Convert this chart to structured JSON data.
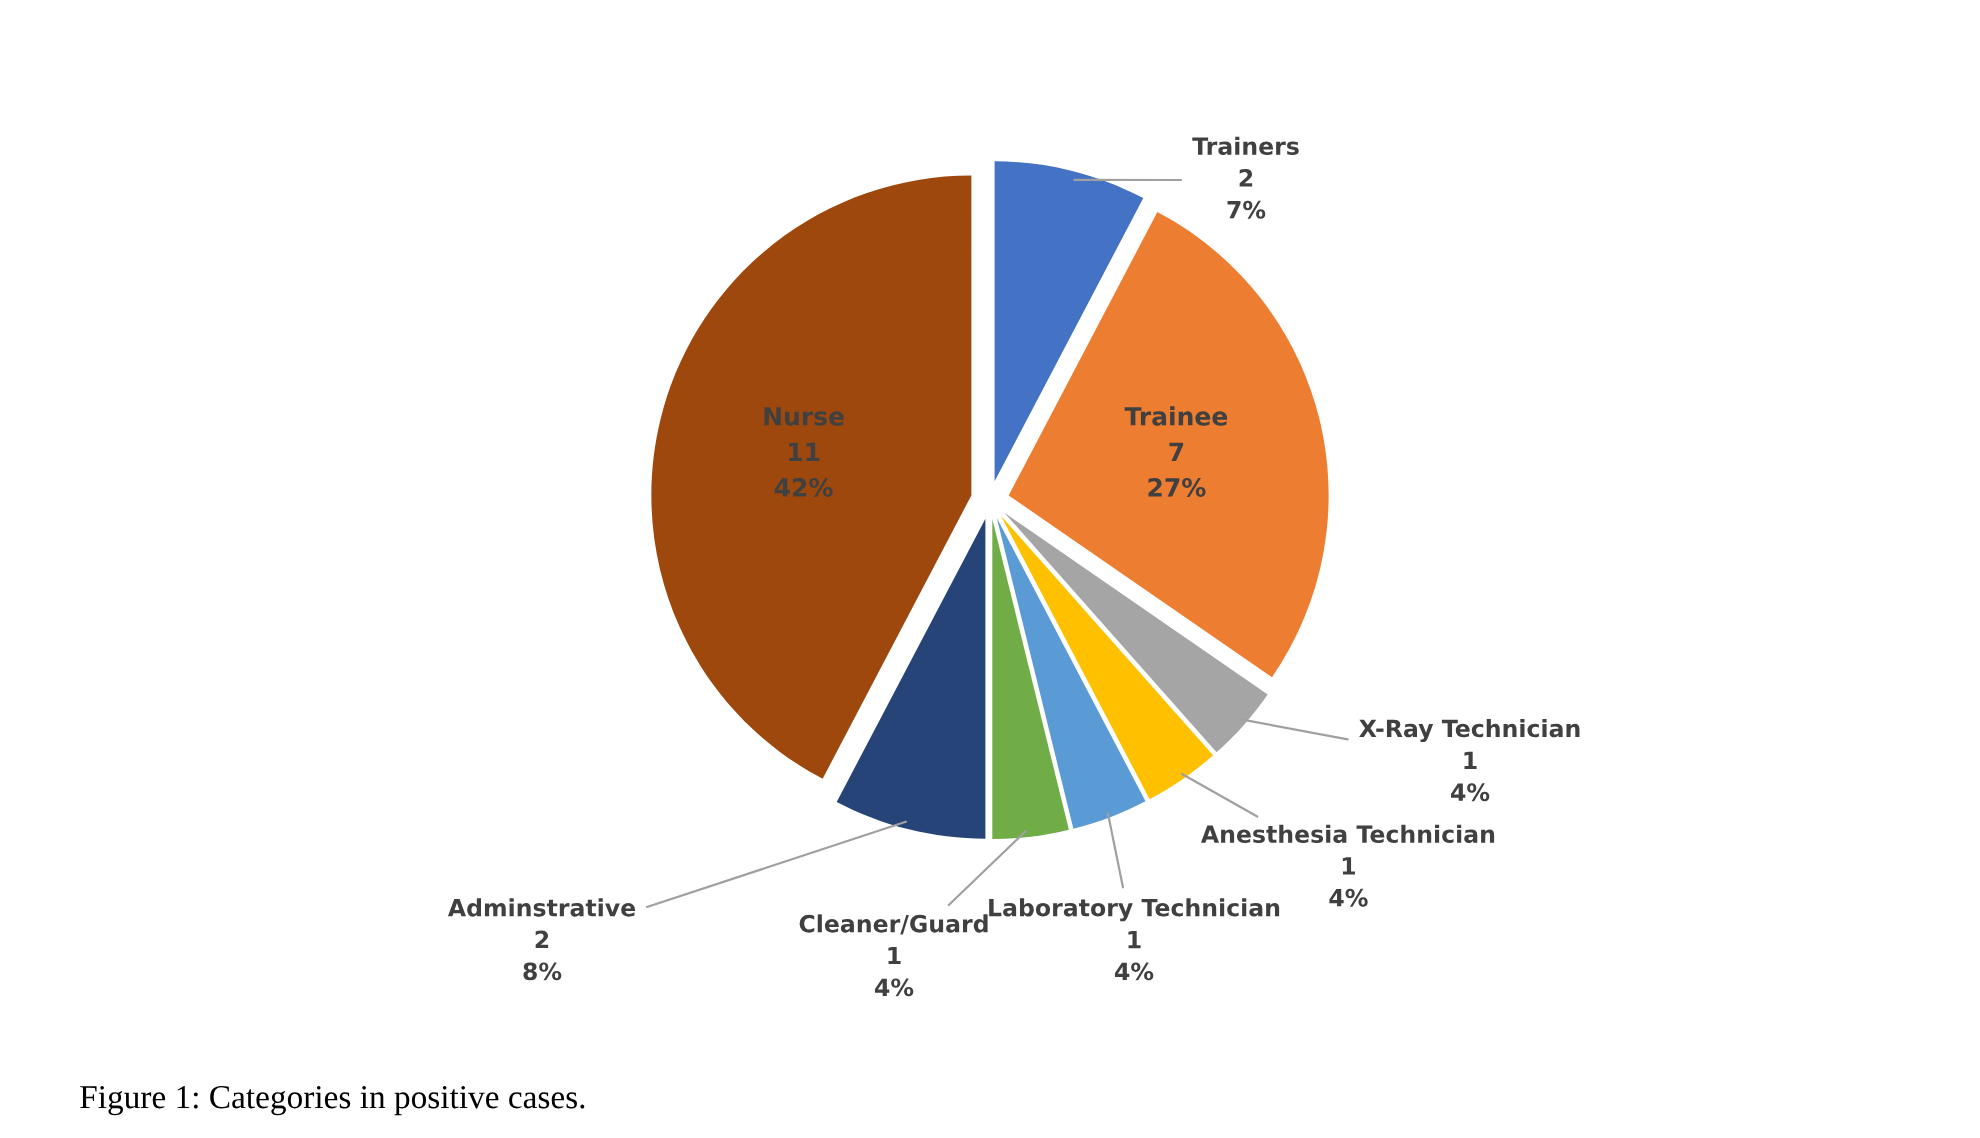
{
  "chart_data": {
    "type": "pie",
    "categories": [
      "Trainers",
      "Trainee",
      "X-Ray Technician",
      "Anesthesia Technician",
      "Laboratory Technician",
      "Cleaner/Guard",
      "Adminstrative",
      "Nurse"
    ],
    "values": [
      2,
      7,
      1,
      1,
      1,
      1,
      2,
      11
    ],
    "value_labels": [
      "2\n7%",
      "7\n27%",
      "1\n4%",
      "1\n4%",
      "1\n4%",
      "1\n4%",
      "2\n8%",
      "11\n42%"
    ],
    "colors": [
      "#4472c4",
      "#ed7d31",
      "#a5a5a5",
      "#ffc000",
      "#5b9bd5",
      "#70ad47",
      "#264478",
      "#9e480e"
    ],
    "annotations": [
      "Figure 1: Categories in positive cases."
    ]
  }
}
